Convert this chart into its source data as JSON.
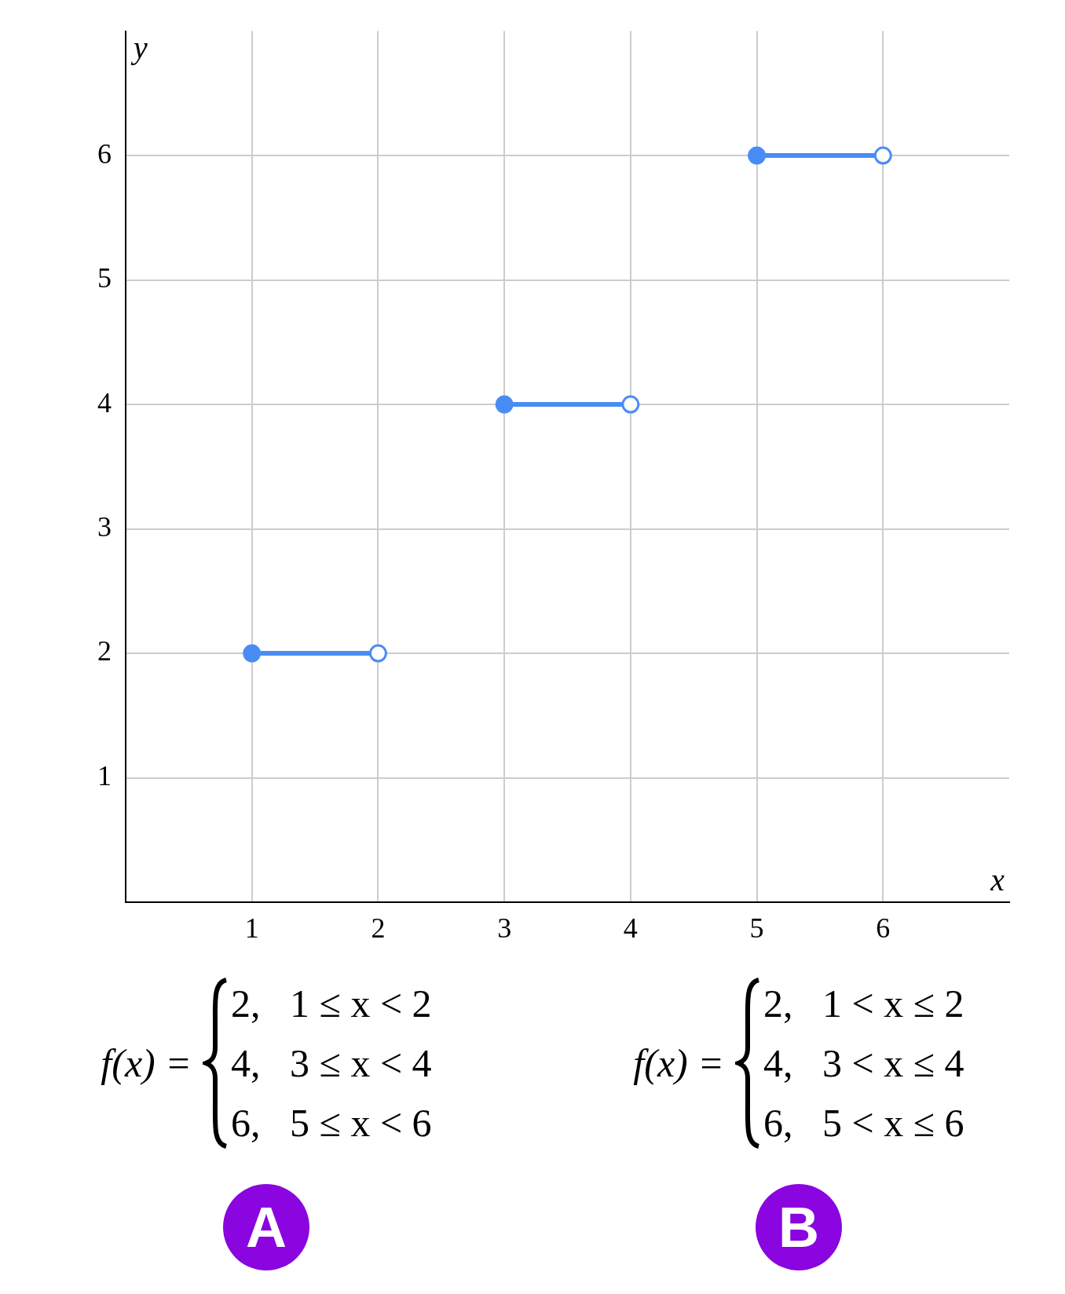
{
  "chart_data": {
    "type": "line",
    "xlabel": "x",
    "ylabel": "y",
    "xlim": [
      0,
      7
    ],
    "ylim": [
      0,
      7
    ],
    "xticks": [
      1,
      2,
      3,
      4,
      5,
      6
    ],
    "yticks": [
      1,
      2,
      3,
      4,
      5,
      6
    ],
    "grid": true,
    "marker": "circle",
    "series": [
      {
        "x": [
          1,
          2
        ],
        "values": [
          2,
          2
        ],
        "color": "#4a8cf5"
      },
      {
        "x": [
          3,
          4
        ],
        "values": [
          4,
          4
        ],
        "color": "#4a8cf5"
      },
      {
        "x": [
          5,
          6
        ],
        "values": [
          6,
          6
        ],
        "color": "#4a8cf5"
      }
    ],
    "annotations": [
      "f(x) =",
      "2,   1 ≤ x < 2",
      "4,   3 ≤ x < 4",
      "6,   5 ≤ x < 6",
      "A",
      "f(x) =",
      "2,   1 < x ≤ 2",
      "4,   3 < x ≤ 4",
      "6,   5 < x ≤ 6",
      "B"
    ]
  }
}
